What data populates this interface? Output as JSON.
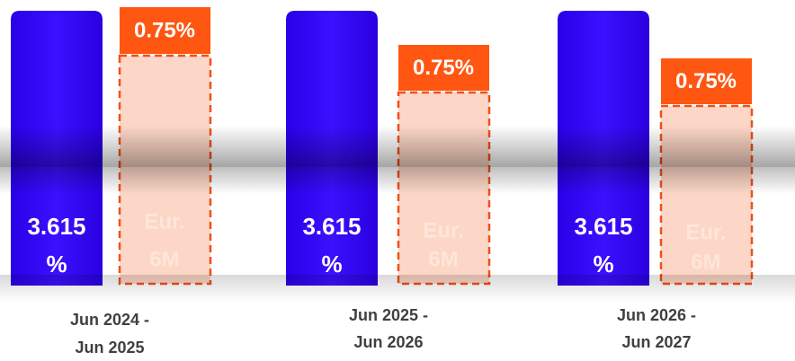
{
  "groups": [
    {
      "fixed": [
        "3.615",
        "%"
      ],
      "spread": "0.75%",
      "floating": [
        "Eur.",
        "6M"
      ],
      "period": [
        "Jun 2024 -",
        "Jun 2025"
      ]
    },
    {
      "fixed": [
        "3.615",
        "%"
      ],
      "spread": "0.75%",
      "floating": [
        "Eur.",
        "6M"
      ],
      "period": [
        "Jun 2025 -",
        "Jun 2026"
      ]
    },
    {
      "fixed": [
        "3.615",
        "%"
      ],
      "spread": "0.75%",
      "floating": [
        "Eur.",
        "6M"
      ],
      "period": [
        "Jun 2026 -",
        "Jun 2027"
      ]
    }
  ]
}
